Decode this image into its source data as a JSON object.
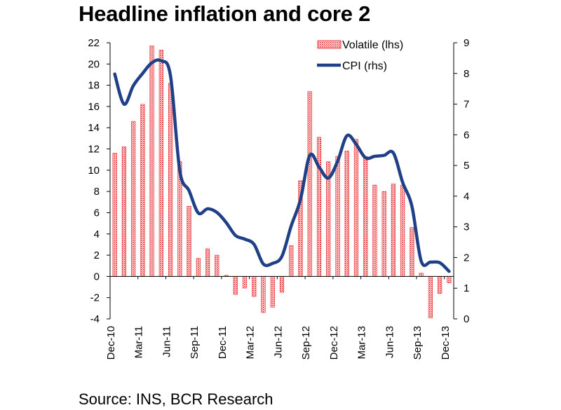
{
  "title": "Headline inflation and core 2",
  "source": "Source: INS, BCR Research",
  "chart_data": {
    "type": "bar",
    "title": "Headline inflation and core 2",
    "x_tick_labels": [
      "Dec-10",
      "Mar-11",
      "Jun-11",
      "Sep-11",
      "Dec-11",
      "Mar-12",
      "Jun-12",
      "Sep-12",
      "Dec-12",
      "Mar-13",
      "Jun-13",
      "Sep-13",
      "Dec-13"
    ],
    "categories": [
      "Dec-10",
      "Jan-11",
      "Feb-11",
      "Mar-11",
      "Apr-11",
      "May-11",
      "Jun-11",
      "Jul-11",
      "Aug-11",
      "Sep-11",
      "Oct-11",
      "Nov-11",
      "Dec-11",
      "Jan-12",
      "Feb-12",
      "Mar-12",
      "Apr-12",
      "May-12",
      "Jun-12",
      "Jul-12",
      "Aug-12",
      "Sep-12",
      "Oct-12",
      "Nov-12",
      "Dec-12",
      "Jan-13",
      "Feb-13",
      "Mar-13",
      "Apr-13",
      "May-13",
      "Jun-13",
      "Jul-13",
      "Aug-13",
      "Sep-13",
      "Oct-13",
      "Nov-13",
      "Dec-13"
    ],
    "left_axis": {
      "ylim": [
        -4,
        22
      ],
      "ticks": [
        -4,
        -2,
        0,
        2,
        4,
        6,
        8,
        10,
        12,
        14,
        16,
        18,
        20,
        22
      ]
    },
    "right_axis": {
      "ylim": [
        0,
        9
      ],
      "ticks": [
        0,
        1,
        2,
        3,
        4,
        5,
        6,
        7,
        8,
        9
      ]
    },
    "legend_position": "top-right",
    "series": [
      {
        "name": "Volatile (lhs)",
        "type": "bar",
        "axis": "left",
        "color": "#e8262b",
        "values": [
          11.6,
          12.2,
          14.6,
          16.2,
          21.7,
          21.3,
          18.2,
          10.8,
          6.6,
          1.7,
          2.6,
          2.0,
          0.1,
          -1.7,
          -1.1,
          -1.9,
          -3.4,
          -2.9,
          -1.5,
          2.9,
          9.0,
          17.4,
          13.1,
          10.8,
          11.3,
          11.8,
          12.9,
          11.3,
          8.6,
          8.0,
          8.7,
          8.6,
          4.6,
          0.3,
          -3.9,
          -1.6,
          -0.6
        ]
      },
      {
        "name": "CPI (rhs)",
        "type": "line",
        "axis": "right",
        "color": "#1f3f86",
        "values": [
          7.98,
          7.0,
          7.6,
          8.0,
          8.35,
          8.41,
          7.93,
          4.84,
          4.18,
          3.45,
          3.59,
          3.47,
          3.14,
          2.72,
          2.6,
          2.43,
          1.79,
          1.81,
          2.04,
          3.03,
          3.89,
          5.33,
          4.95,
          4.59,
          5.14,
          5.97,
          5.69,
          5.25,
          5.3,
          5.33,
          5.41,
          4.45,
          3.67,
          1.88,
          1.85,
          1.83,
          1.55
        ]
      }
    ]
  }
}
